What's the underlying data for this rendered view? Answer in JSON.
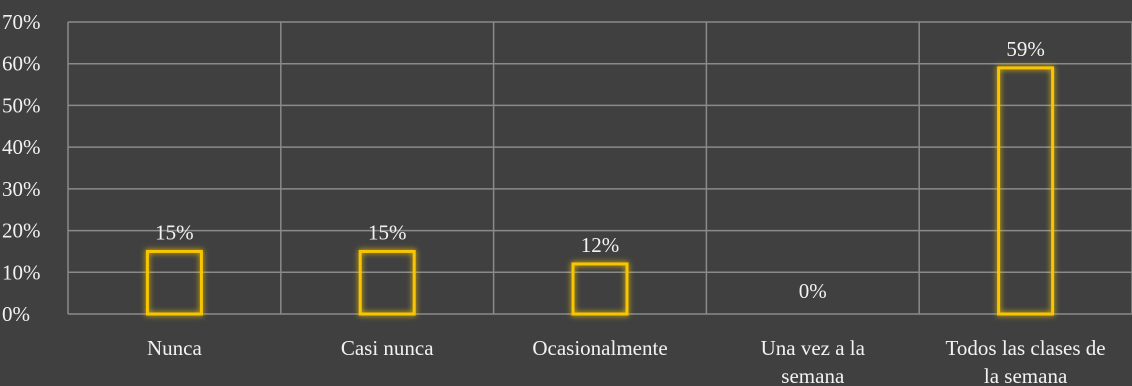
{
  "chart_data": {
    "type": "bar",
    "categories": [
      [
        "Nunca"
      ],
      [
        "Casi nunca"
      ],
      [
        "Ocasionalmente"
      ],
      [
        "Una vez a la",
        "semana"
      ],
      [
        "Todos las clases de",
        "la semana"
      ]
    ],
    "values": [
      15,
      15,
      12,
      0,
      59
    ],
    "data_labels": [
      "15%",
      "15%",
      "12%",
      "0%",
      "59%"
    ],
    "y_ticks": [
      "0%",
      "10%",
      "20%",
      "30%",
      "40%",
      "50%",
      "60%",
      "70%"
    ],
    "ylim": [
      0,
      70
    ],
    "grid": true,
    "legend": "none",
    "colors": {
      "background": "#404040",
      "grid": "#8a8a8a",
      "bar_stroke": "#f7c600",
      "bar_glow": "#d9a400",
      "text": "#f2f2f2"
    }
  }
}
